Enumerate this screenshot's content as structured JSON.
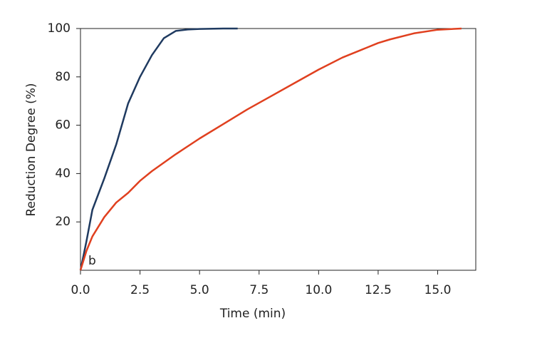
{
  "chart_data": {
    "type": "line",
    "xlabel": "Time (min)",
    "ylabel": "Reduction Degree (%)",
    "annotation": "b",
    "xlim": [
      0,
      16.6
    ],
    "ylim": [
      0,
      100
    ],
    "xticks": [
      {
        "value": 0,
        "label": "0.0"
      },
      {
        "value": 2.5,
        "label": "2.5"
      },
      {
        "value": 5,
        "label": "5.0"
      },
      {
        "value": 7.5,
        "label": "7.5"
      },
      {
        "value": 10,
        "label": "10.0"
      },
      {
        "value": 12.5,
        "label": "12.5"
      },
      {
        "value": 15,
        "label": "15.0"
      }
    ],
    "yticks": [
      20,
      40,
      60,
      80,
      100
    ],
    "grid": false,
    "series": [
      {
        "color": "#1f3a60",
        "x": [
          0,
          0.25,
          0.5,
          1,
          1.5,
          2,
          2.5,
          3,
          3.5,
          4,
          4.5,
          5,
          6,
          6.6
        ],
        "values": [
          0,
          12,
          25,
          38,
          52,
          69,
          80,
          89,
          96,
          99,
          99.6,
          99.8,
          100,
          100
        ]
      },
      {
        "color": "#e0401f",
        "x": [
          0,
          0.25,
          0.5,
          1,
          1.5,
          2,
          2.5,
          3,
          4,
          5,
          6,
          7,
          8,
          9,
          10,
          11,
          12,
          12.5,
          13,
          14,
          15,
          16
        ],
        "values": [
          0,
          8,
          14,
          22,
          28,
          32,
          37,
          41,
          48,
          54.5,
          60.5,
          66.5,
          72,
          77.5,
          83,
          88,
          92,
          94,
          95.5,
          98,
          99.5,
          100
        ]
      }
    ]
  }
}
